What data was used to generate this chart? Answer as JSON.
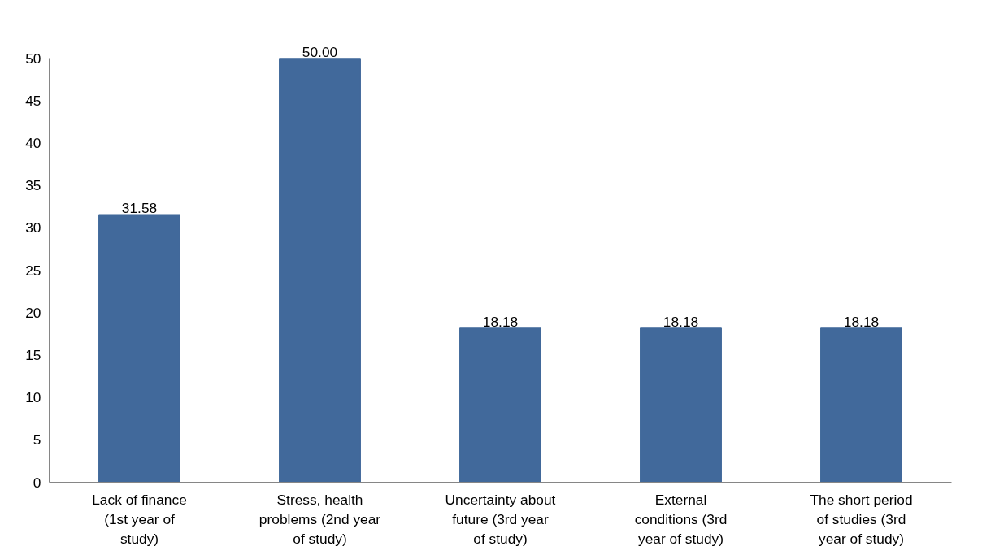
{
  "chart_data": {
    "type": "bar",
    "categories": [
      "Lack of finance (1st year of study)",
      "Stress, health problems (2nd year of study)",
      "Uncertainty about future (3rd year of study)",
      "External conditions (3rd year of study)",
      "The short period of studies (3rd year of study)"
    ],
    "values": [
      31.58,
      50.0,
      18.18,
      18.18,
      18.18
    ],
    "value_labels": [
      "31.58",
      "50.00",
      "18.18",
      "18.18",
      "18.18"
    ],
    "color": "#41699b",
    "ylim": [
      0,
      50
    ],
    "yticks": [
      0,
      5,
      10,
      15,
      20,
      25,
      30,
      35,
      40,
      45,
      50
    ],
    "grid": false
  }
}
